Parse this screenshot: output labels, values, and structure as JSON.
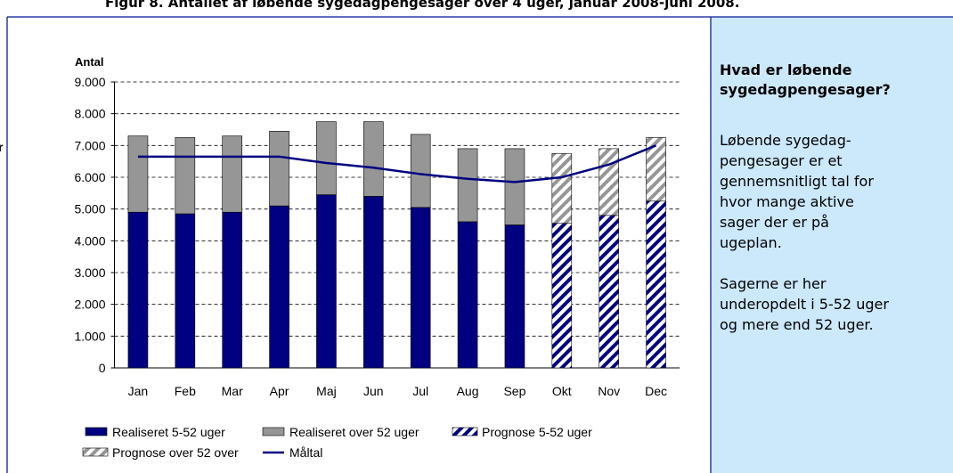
{
  "page_title": "Figur 8. Antallet af løbende sygedagpengesager over 4 uger, januar 2008-juni 2008.",
  "edge_fragment": "r",
  "chart_data": {
    "type": "bar",
    "ylabel": "Antal",
    "categories": [
      "Jan",
      "Feb",
      "Mar",
      "Apr",
      "Maj",
      "Jun",
      "Jul",
      "Aug",
      "Sep",
      "Okt",
      "Nov",
      "Dec"
    ],
    "ylim": [
      0,
      9000
    ],
    "yticks": [
      0,
      {
        "value": 1000,
        "label": "1.000"
      },
      {
        "value": 2000,
        "label": "2.000"
      },
      {
        "value": 3000,
        "label": "3.000"
      },
      {
        "value": 4000,
        "label": "4.000"
      },
      {
        "value": 5000,
        "label": "5.000"
      },
      {
        "value": 6000,
        "label": "6.000"
      },
      {
        "value": 7000,
        "label": "7.000"
      },
      {
        "value": 8000,
        "label": "8.000"
      },
      {
        "value": 9000,
        "label": "9.000"
      }
    ],
    "grid": true,
    "series": [
      {
        "name": "Realiseret 5-52 uger",
        "color": "#000080",
        "values": [
          4900,
          4850,
          4900,
          5100,
          5450,
          5400,
          5050,
          4600,
          4500,
          null,
          null,
          null
        ]
      },
      {
        "name": "Realiseret over 52 uger",
        "color": "#969696",
        "values": [
          2400,
          2400,
          2400,
          2350,
          2300,
          2350,
          2300,
          2300,
          2400,
          null,
          null,
          null
        ]
      },
      {
        "name": "Prognose 5-52 uger",
        "color": "#000080",
        "pattern": "hatch",
        "values": [
          null,
          null,
          null,
          null,
          null,
          null,
          null,
          null,
          null,
          4550,
          4800,
          5250
        ]
      },
      {
        "name": "Prognose over 52 over",
        "color": "#969696",
        "pattern": "hatch",
        "values": [
          null,
          null,
          null,
          null,
          null,
          null,
          null,
          null,
          null,
          2200,
          2100,
          2000
        ]
      },
      {
        "name": "Måltal",
        "color": "#000080",
        "kind": "line",
        "values": [
          6650,
          6650,
          6650,
          6650,
          6450,
          6300,
          6100,
          5950,
          5850,
          6000,
          6400,
          7000
        ]
      }
    ]
  },
  "sidebar": {
    "heading": [
      "Hvad er løbende",
      "sygedagpengesager?"
    ],
    "paragraphs": [
      [
        "Løbende sygedag-",
        "pengesager er et",
        "gennemsnitligt tal for",
        "hvor mange aktive",
        "sager der er på",
        "ugeplan."
      ],
      [
        "Sagerne er her",
        "underopdelt i 5-52 uger",
        "og mere end 52 uger."
      ]
    ]
  }
}
